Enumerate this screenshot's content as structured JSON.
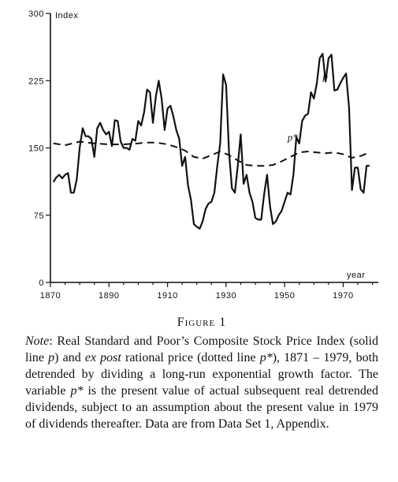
{
  "chart_data": {
    "type": "line",
    "title": "",
    "xlabel": "year",
    "ylabel": "Index",
    "xlim": [
      1870,
      1982
    ],
    "ylim": [
      0,
      300
    ],
    "x_ticks": [
      1870,
      1890,
      1910,
      1930,
      1950,
      1970
    ],
    "y_ticks": [
      0,
      75,
      150,
      225,
      300
    ],
    "grid": false,
    "legend": "none",
    "series": [
      {
        "name": "p",
        "style": "solid",
        "x": [
          1871,
          1872,
          1873,
          1874,
          1875,
          1876,
          1877,
          1878,
          1879,
          1880,
          1881,
          1882,
          1883,
          1884,
          1885,
          1886,
          1887,
          1888,
          1889,
          1890,
          1891,
          1892,
          1893,
          1894,
          1895,
          1896,
          1897,
          1898,
          1899,
          1900,
          1901,
          1902,
          1903,
          1904,
          1905,
          1906,
          1907,
          1908,
          1909,
          1910,
          1911,
          1912,
          1913,
          1914,
          1915,
          1916,
          1917,
          1918,
          1919,
          1920,
          1921,
          1922,
          1923,
          1924,
          1925,
          1926,
          1927,
          1928,
          1929,
          1930,
          1931,
          1932,
          1933,
          1934,
          1935,
          1936,
          1937,
          1938,
          1939,
          1940,
          1941,
          1942,
          1943,
          1944,
          1945,
          1946,
          1947,
          1948,
          1949,
          1950,
          1951,
          1952,
          1953,
          1954,
          1955,
          1956,
          1957,
          1958,
          1959,
          1960,
          1961,
          1962,
          1963,
          1964,
          1965,
          1966,
          1967,
          1968,
          1969,
          1970,
          1971,
          1972,
          1973,
          1974,
          1975,
          1976,
          1977,
          1978,
          1979
        ],
        "values": [
          112,
          117,
          120,
          116,
          120,
          122,
          100,
          100,
          115,
          150,
          172,
          163,
          163,
          160,
          140,
          172,
          178,
          170,
          165,
          168,
          152,
          181,
          180,
          157,
          150,
          150,
          148,
          160,
          158,
          180,
          175,
          190,
          215,
          212,
          178,
          207,
          225,
          205,
          170,
          194,
          197,
          185,
          170,
          160,
          130,
          140,
          108,
          92,
          65,
          62,
          60,
          68,
          82,
          88,
          90,
          100,
          130,
          155,
          232,
          220,
          145,
          105,
          100,
          130,
          165,
          110,
          120,
          100,
          90,
          72,
          70,
          70,
          98,
          120,
          85,
          65,
          68,
          75,
          80,
          90,
          100,
          98,
          120,
          162,
          155,
          180,
          186,
          188,
          212,
          205,
          222,
          250,
          255,
          224,
          250,
          254,
          214,
          215,
          222,
          228,
          233,
          195,
          103,
          128,
          128,
          104,
          100,
          130,
          130
        ]
      },
      {
        "name": "p*",
        "style": "dashed",
        "x": [
          1871,
          1875,
          1880,
          1885,
          1890,
          1895,
          1900,
          1903,
          1906,
          1910,
          1913,
          1916,
          1919,
          1922,
          1925,
          1928,
          1931,
          1934,
          1937,
          1940,
          1943,
          1946,
          1949,
          1952,
          1955,
          1958,
          1961,
          1964,
          1967,
          1970,
          1973,
          1976,
          1979
        ],
        "values": [
          155,
          153,
          157,
          155,
          154,
          154,
          155,
          156,
          156,
          154,
          151,
          147,
          140,
          138,
          142,
          146,
          142,
          136,
          131,
          130,
          130,
          131,
          135,
          140,
          145,
          146,
          145,
          144,
          145,
          143,
          139,
          141,
          145
        ]
      }
    ],
    "annotations": [
      {
        "text": "p",
        "series": "p"
      },
      {
        "text": "p*",
        "series": "p*"
      }
    ]
  },
  "figure": {
    "title": "Figure 1",
    "note_lead": "Note",
    "note_segments": [
      {
        "t": ": Real Standard and Poor’s Composite Stock Price Index (solid line ",
        "i": false
      },
      {
        "t": "p",
        "i": true
      },
      {
        "t": ") and ",
        "i": false
      },
      {
        "t": "ex post",
        "i": true
      },
      {
        "t": " rational price (dotted line ",
        "i": false
      },
      {
        "t": "p*",
        "i": true
      },
      {
        "t": "), 1871 – 1979, both detrended by dividing a long-run exponential growth factor. The variable ",
        "i": false
      },
      {
        "t": "p*",
        "i": true
      },
      {
        "t": " is the present value of actual subsequent real detrended dividends, subject to an assumption about the present value in 1979 of dividends thereafter. Data are from Data Set 1, Appendix.",
        "i": false
      }
    ]
  }
}
